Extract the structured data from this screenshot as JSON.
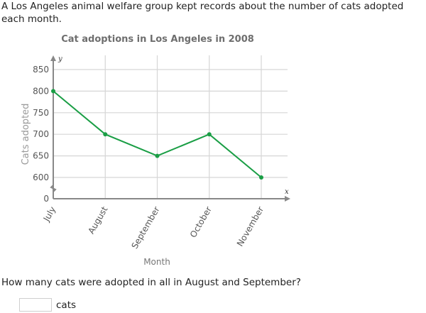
{
  "problem": {
    "intro": "A Los Angeles animal welfare group kept records about the number of cats adopted each month.",
    "question": "How many cats were adopted in all in August and September?",
    "answer": {
      "value": "",
      "placeholder": "",
      "unit": "cats"
    }
  },
  "colors": {
    "line": "#1a9e45",
    "grid": "#d6d6d6",
    "axis": "#888888",
    "title": "#6e6e6e"
  },
  "chart_data": {
    "type": "line",
    "title": "Cat adoptions in Los Angeles in 2008",
    "xlabel": "Month",
    "ylabel": "Cats adopted",
    "x_axis_letter": "x",
    "y_axis_letter": "y",
    "categories": [
      "July",
      "August",
      "September",
      "October",
      "November"
    ],
    "values": [
      800,
      700,
      650,
      700,
      600
    ],
    "yticks": [
      0,
      600,
      650,
      700,
      750,
      800,
      850
    ],
    "ylim": [
      0,
      850
    ],
    "axis_break": true,
    "grid": true,
    "legend": "none"
  }
}
